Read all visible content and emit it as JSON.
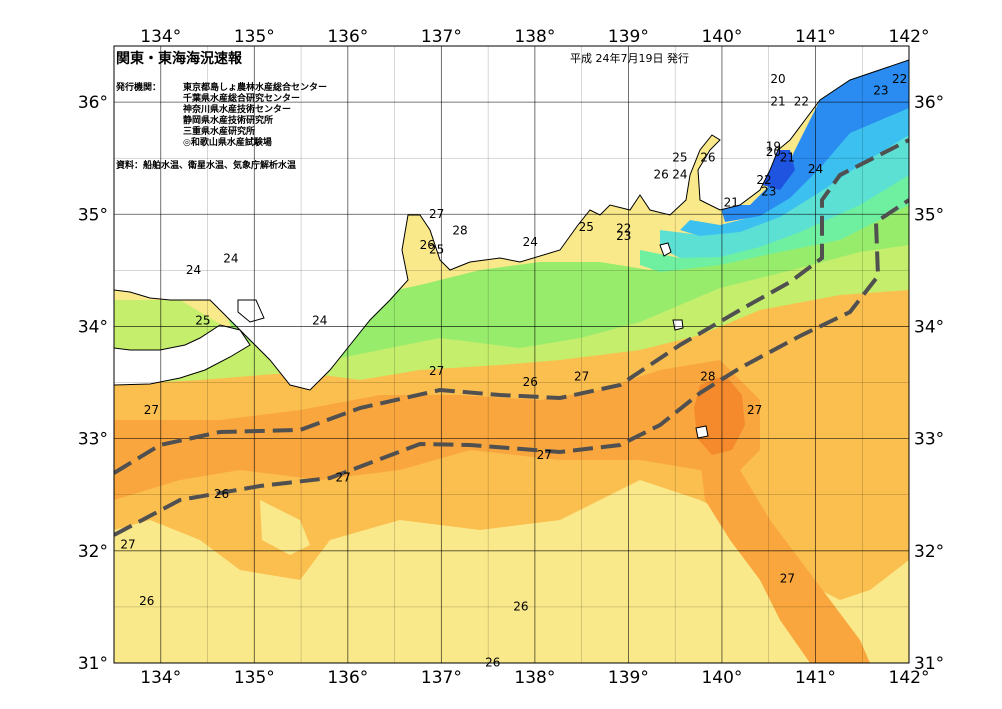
{
  "header": {
    "title": "関東・東海海況速報",
    "issue_date": "平成 24年7月19日 発行",
    "issuer_label": "発行機関：",
    "issuers": [
      "東京都島しょ農林水産総合センター",
      "千葉県水産総合研究センター",
      "神奈川県水産技術センター",
      "静岡県水産技術研究所",
      "三重県水産研究所",
      "◎和歌山県水産試験場"
    ],
    "source": "資料：船舶水温、衛星水温、気象庁解析水温"
  },
  "axes": {
    "longitudes": [
      "134°",
      "135°",
      "136°",
      "137°",
      "138°",
      "139°",
      "140°",
      "141°",
      "142°"
    ],
    "latitudes": [
      "36°",
      "35°",
      "34°",
      "33°",
      "32°",
      "31°"
    ],
    "lon_range": [
      133.5,
      142.0
    ],
    "lat_range": [
      31.0,
      36.5
    ]
  },
  "colors": {
    "t19": "#1e54e0",
    "t20": "#2a8cf0",
    "t21": "#3cc0f0",
    "t22": "#5ce0d4",
    "t23": "#6ef0a0",
    "t24": "#98ec6c",
    "t25": "#c4ee6c",
    "t26": "#fae98a",
    "t26b": "#fbdb68",
    "t27": "#fbbf50",
    "t27b": "#f9a63e",
    "t28": "#f48a2c",
    "land": "#ffffff",
    "current": "#505050"
  },
  "labels": [
    {
      "text": "22",
      "lon": 141.9,
      "lat": 36.2
    },
    {
      "text": "23",
      "lon": 141.7,
      "lat": 36.1
    },
    {
      "text": "20",
      "lon": 140.6,
      "lat": 36.2
    },
    {
      "text": "21",
      "lon": 140.6,
      "lat": 36.0
    },
    {
      "text": "22",
      "lon": 140.85,
      "lat": 36.0
    },
    {
      "text": "19",
      "lon": 140.55,
      "lat": 35.6
    },
    {
      "text": "20",
      "lon": 140.55,
      "lat": 35.55
    },
    {
      "text": "21",
      "lon": 140.7,
      "lat": 35.5
    },
    {
      "text": "24",
      "lon": 141.0,
      "lat": 35.4
    },
    {
      "text": "22",
      "lon": 140.45,
      "lat": 35.3
    },
    {
      "text": "23",
      "lon": 140.5,
      "lat": 35.2
    },
    {
      "text": "21",
      "lon": 140.1,
      "lat": 35.1
    },
    {
      "text": "25",
      "lon": 139.55,
      "lat": 35.5
    },
    {
      "text": "26",
      "lon": 139.85,
      "lat": 35.5
    },
    {
      "text": "26",
      "lon": 139.35,
      "lat": 35.35
    },
    {
      "text": "24",
      "lon": 139.55,
      "lat": 35.35
    },
    {
      "text": "22",
      "lon": 138.95,
      "lat": 34.87
    },
    {
      "text": "23",
      "lon": 138.95,
      "lat": 34.8
    },
    {
      "text": "25",
      "lon": 138.55,
      "lat": 34.88
    },
    {
      "text": "24",
      "lon": 137.95,
      "lat": 34.75
    },
    {
      "text": "27",
      "lon": 136.95,
      "lat": 35.0
    },
    {
      "text": "28",
      "lon": 137.2,
      "lat": 34.85
    },
    {
      "text": "26",
      "lon": 136.85,
      "lat": 34.72
    },
    {
      "text": "25",
      "lon": 136.95,
      "lat": 34.68
    },
    {
      "text": "24",
      "lon": 134.75,
      "lat": 34.6
    },
    {
      "text": "24",
      "lon": 134.35,
      "lat": 34.5
    },
    {
      "text": "25",
      "lon": 134.45,
      "lat": 34.05
    },
    {
      "text": "24",
      "lon": 135.7,
      "lat": 34.05
    },
    {
      "text": "27",
      "lon": 136.95,
      "lat": 33.6
    },
    {
      "text": "26",
      "lon": 137.95,
      "lat": 33.5
    },
    {
      "text": "27",
      "lon": 138.5,
      "lat": 33.55
    },
    {
      "text": "28",
      "lon": 139.85,
      "lat": 33.55
    },
    {
      "text": "27",
      "lon": 140.35,
      "lat": 33.25
    },
    {
      "text": "27",
      "lon": 133.9,
      "lat": 33.25
    },
    {
      "text": "27",
      "lon": 138.1,
      "lat": 32.85
    },
    {
      "text": "27",
      "lon": 135.95,
      "lat": 32.65
    },
    {
      "text": "26",
      "lon": 134.65,
      "lat": 32.5
    },
    {
      "text": "27",
      "lon": 133.65,
      "lat": 32.05
    },
    {
      "text": "26",
      "lon": 133.85,
      "lat": 31.55
    },
    {
      "text": "26",
      "lon": 137.85,
      "lat": 31.5
    },
    {
      "text": "27",
      "lon": 140.7,
      "lat": 31.75
    },
    {
      "text": "26",
      "lon": 137.55,
      "lat": 31.0
    }
  ]
}
